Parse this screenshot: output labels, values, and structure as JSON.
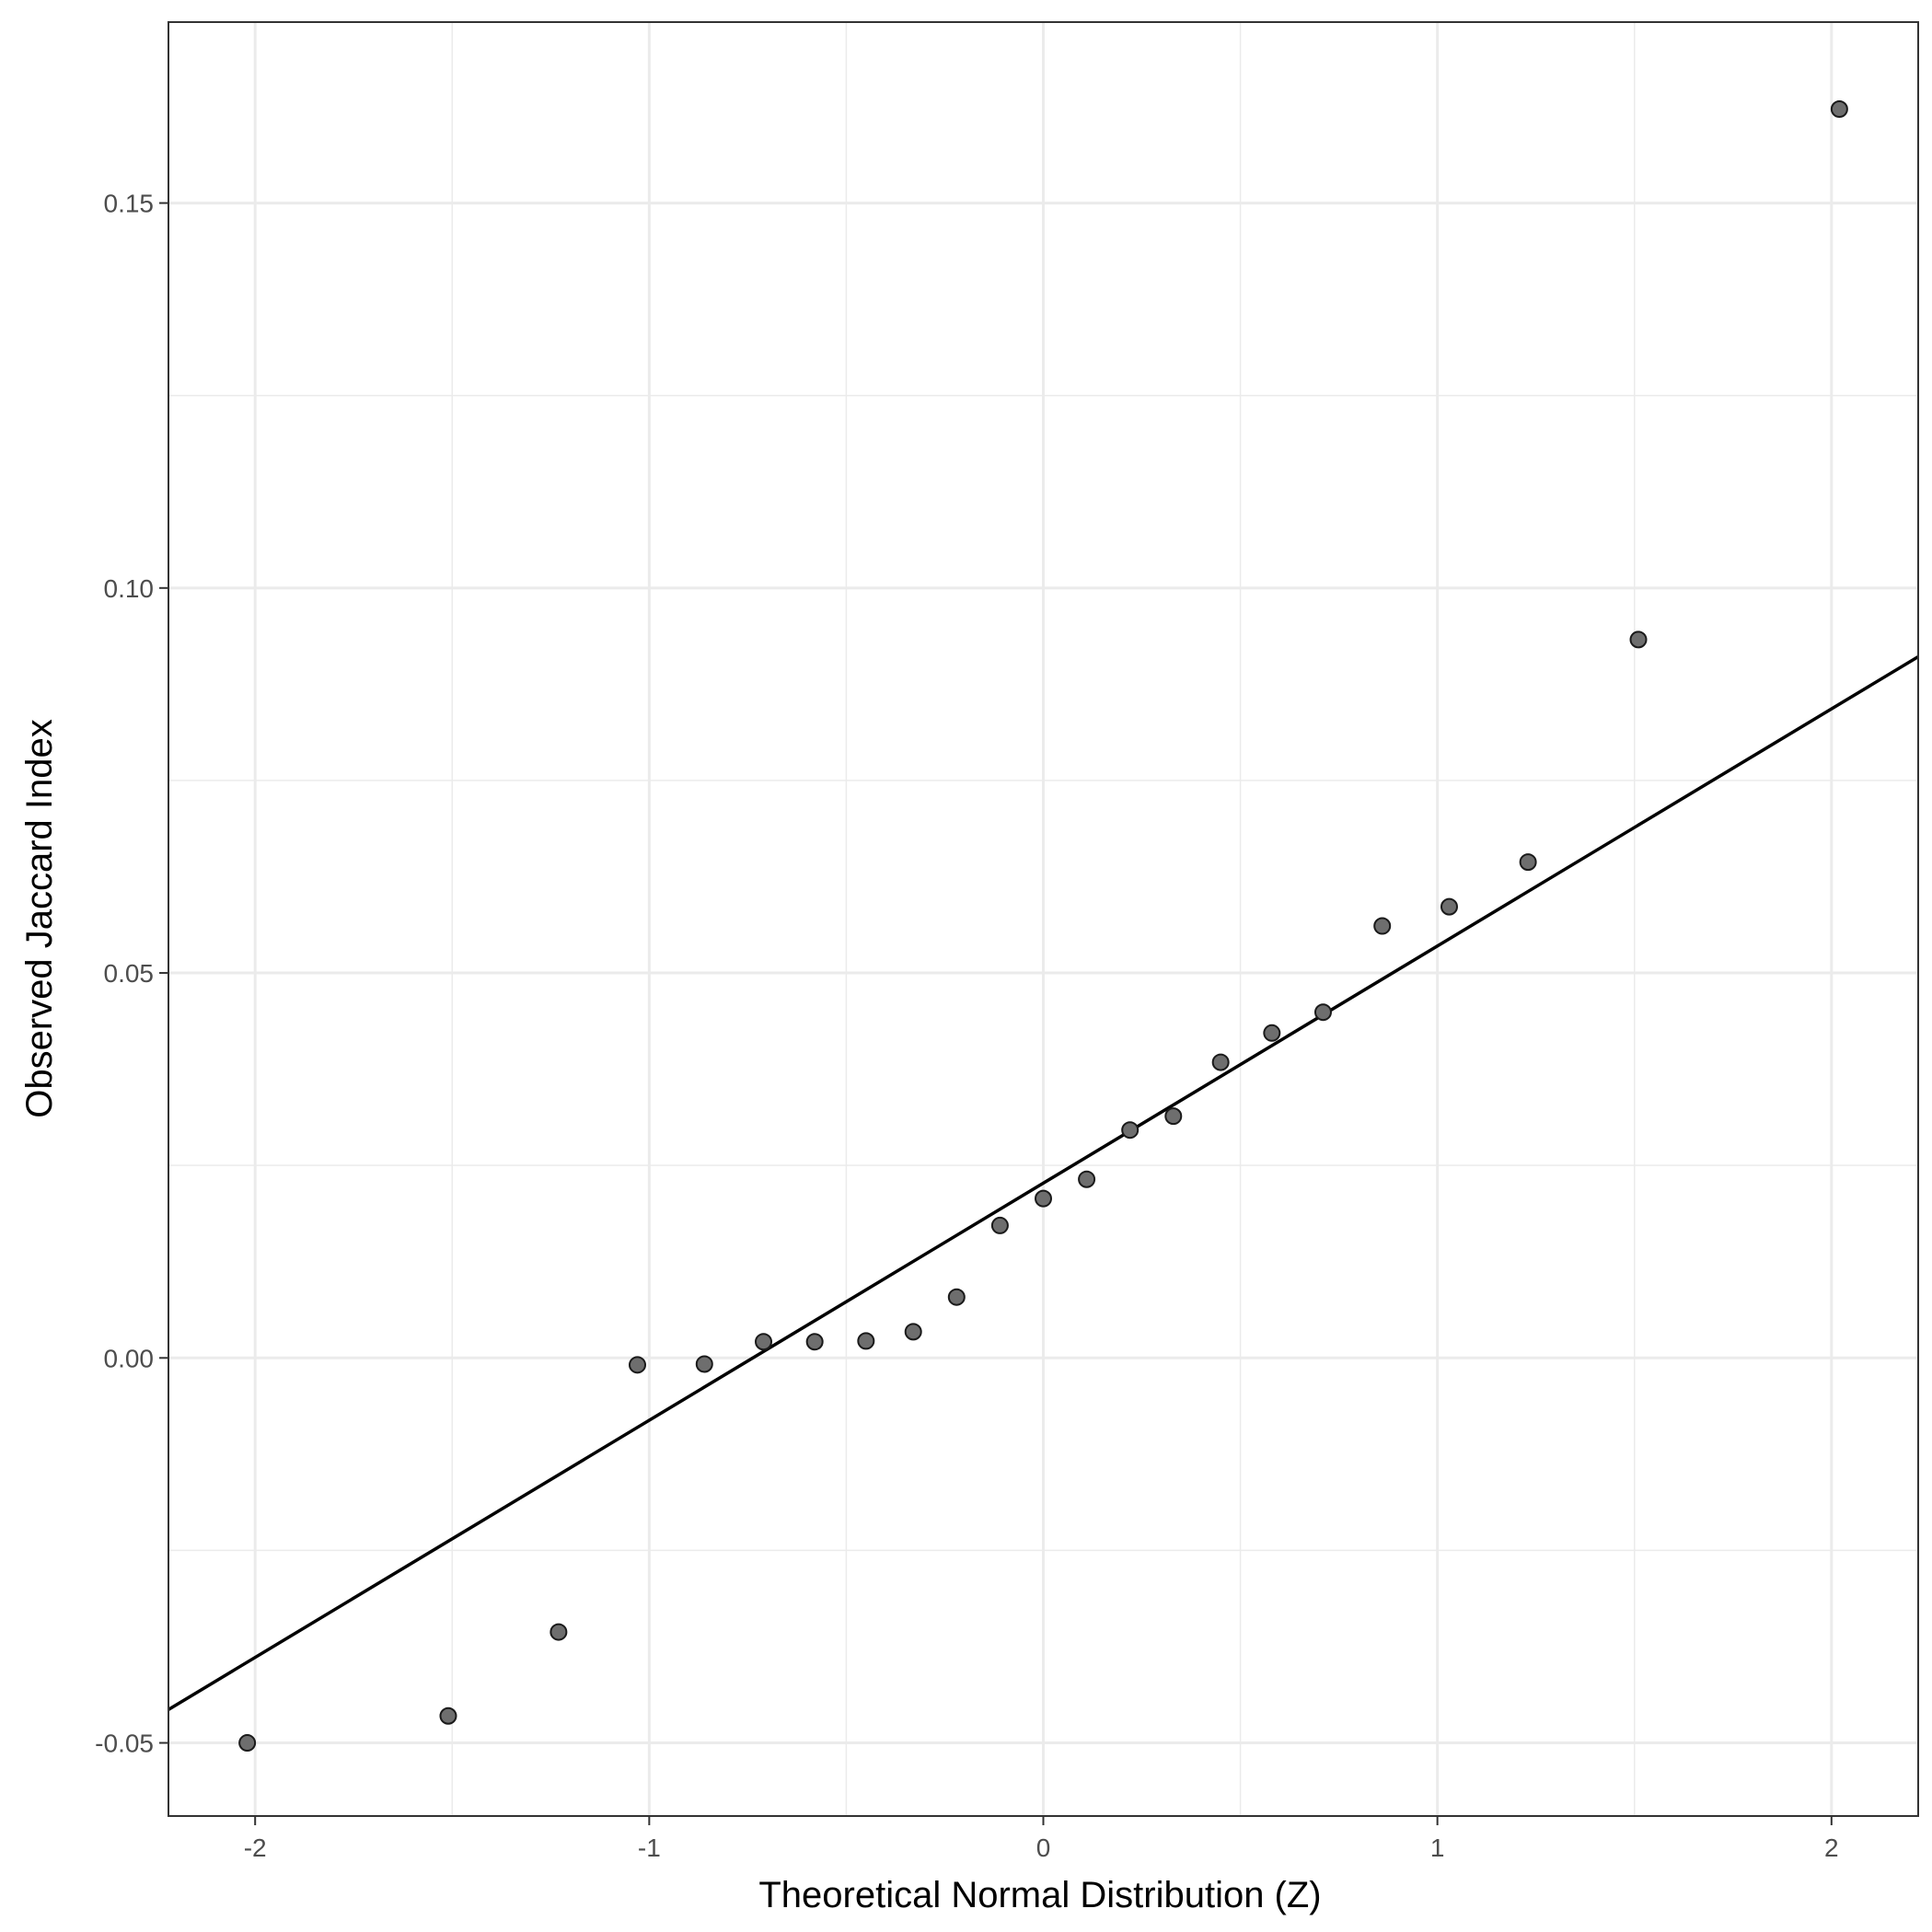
{
  "chart_data": {
    "type": "scatter",
    "title": "",
    "xlabel": "Theoretical Normal Distribution (Z)",
    "ylabel": "Observed Jaccard Index",
    "xlim": [
      -2.22,
      2.22
    ],
    "ylim": [
      -0.0595,
      0.1735
    ],
    "x_ticks": [
      {
        "value": -2,
        "label": "-2"
      },
      {
        "value": -1,
        "label": "-1"
      },
      {
        "value": 0,
        "label": "0"
      },
      {
        "value": 1,
        "label": "1"
      },
      {
        "value": 2,
        "label": "2"
      }
    ],
    "x_minor": [
      -1.5,
      -0.5,
      0.5,
      1.5
    ],
    "y_ticks": [
      {
        "value": -0.05,
        "label": "-0.05"
      },
      {
        "value": 0.0,
        "label": "0.00"
      },
      {
        "value": 0.05,
        "label": "0.05"
      },
      {
        "value": 0.1,
        "label": "0.10"
      },
      {
        "value": 0.15,
        "label": "0.15"
      }
    ],
    "y_minor": [
      -0.025,
      0.025,
      0.075,
      0.125
    ],
    "grid": true,
    "points": [
      {
        "x": -2.02,
        "y": -0.05
      },
      {
        "x": -1.51,
        "y": -0.0465
      },
      {
        "x": -1.23,
        "y": -0.0356
      },
      {
        "x": -1.03,
        "y": -0.0009
      },
      {
        "x": -0.86,
        "y": -0.0008
      },
      {
        "x": -0.71,
        "y": 0.0021
      },
      {
        "x": -0.58,
        "y": 0.0021
      },
      {
        "x": -0.45,
        "y": 0.0022
      },
      {
        "x": -0.33,
        "y": 0.0034
      },
      {
        "x": -0.22,
        "y": 0.0079
      },
      {
        "x": -0.11,
        "y": 0.0172
      },
      {
        "x": 0.0,
        "y": 0.0207
      },
      {
        "x": 0.11,
        "y": 0.0232
      },
      {
        "x": 0.22,
        "y": 0.0296
      },
      {
        "x": 0.33,
        "y": 0.0314
      },
      {
        "x": 0.45,
        "y": 0.0384
      },
      {
        "x": 0.58,
        "y": 0.0422
      },
      {
        "x": 0.71,
        "y": 0.0449
      },
      {
        "x": 0.86,
        "y": 0.0561
      },
      {
        "x": 1.03,
        "y": 0.0586
      },
      {
        "x": 1.23,
        "y": 0.0644
      },
      {
        "x": 1.51,
        "y": 0.0933
      },
      {
        "x": 2.02,
        "y": 0.1622
      }
    ],
    "reference_line": {
      "intercept": 0.0227,
      "slope": 0.0308
    }
  }
}
